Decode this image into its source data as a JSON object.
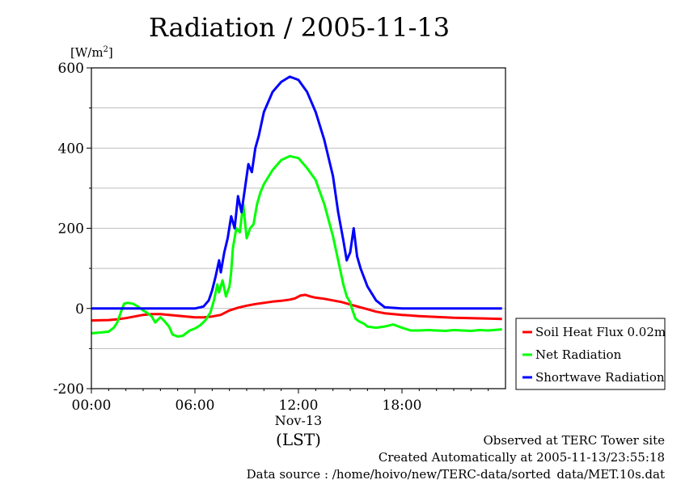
{
  "chart_data": {
    "type": "line",
    "title": "Radiation / 2005-11-13",
    "ylabel_unit": "[W/m",
    "ylabel_sup": "2",
    "ylabel_close": "]",
    "ylim": [
      -200,
      600
    ],
    "yticks": [
      -200,
      0,
      200,
      400,
      600
    ],
    "xlim": [
      0,
      24
    ],
    "xticks": [
      {
        "value": 0,
        "label": "00:00"
      },
      {
        "value": 6,
        "label": "06:00"
      },
      {
        "value": 12,
        "label": "12:00"
      },
      {
        "value": 18,
        "label": "18:00"
      }
    ],
    "date_label": "Nov-13",
    "xlabel": "(LST)",
    "grid": true,
    "legend_position": "right",
    "series": [
      {
        "name": "Soil Heat Flux 0.02m",
        "color": "#ff0000",
        "x": [
          0,
          1,
          1.5,
          2,
          2.5,
          3,
          3.5,
          4,
          4.5,
          5,
          5.5,
          6,
          6.5,
          7,
          7.5,
          8,
          8.5,
          9,
          9.5,
          10,
          10.5,
          11,
          11.5,
          11.8,
          12.1,
          12.4,
          12.7,
          13,
          13.5,
          14,
          14.5,
          15,
          15.5,
          16,
          16.5,
          17,
          18,
          19,
          20,
          21,
          22,
          23,
          23.8
        ],
        "values": [
          -30,
          -29,
          -27,
          -24,
          -20,
          -16,
          -14,
          -14,
          -16,
          -18,
          -20,
          -22,
          -22,
          -20,
          -16,
          -5,
          2,
          7,
          11,
          14,
          17,
          19,
          22,
          25,
          32,
          34,
          30,
          27,
          24,
          20,
          16,
          10,
          4,
          -2,
          -8,
          -12,
          -16,
          -19,
          -21,
          -23,
          -24,
          -25,
          -26
        ]
      },
      {
        "name": "Net Radiation",
        "color": "#00ff00",
        "x": [
          0,
          0.5,
          1,
          1.3,
          1.5,
          1.7,
          1.9,
          2.1,
          2.4,
          2.7,
          3,
          3.2,
          3.5,
          3.7,
          4,
          4.2,
          4.5,
          4.7,
          5,
          5.3,
          5.7,
          6,
          6.3,
          6.6,
          6.9,
          7.1,
          7.3,
          7.4,
          7.6,
          7.8,
          8,
          8.1,
          8.2,
          8.4,
          8.6,
          8.8,
          9,
          9.2,
          9.4,
          9.6,
          9.8,
          10,
          10.5,
          11,
          11.5,
          12,
          12.5,
          13,
          13.5,
          14,
          14.3,
          14.6,
          14.8,
          15,
          15.1,
          15.3,
          15.5,
          15.8,
          16,
          16.5,
          17,
          17.5,
          18,
          18.5,
          19,
          19.5,
          20,
          20.5,
          21,
          21.5,
          22,
          22.5,
          23,
          23.5,
          23.8
        ],
        "values": [
          -62,
          -60,
          -58,
          -48,
          -35,
          -10,
          12,
          14,
          12,
          5,
          -5,
          -10,
          -20,
          -35,
          -22,
          -30,
          -45,
          -65,
          -70,
          -68,
          -55,
          -50,
          -42,
          -30,
          -10,
          20,
          60,
          40,
          70,
          30,
          55,
          90,
          150,
          200,
          190,
          260,
          175,
          200,
          210,
          260,
          290,
          310,
          345,
          370,
          380,
          375,
          350,
          320,
          260,
          180,
          120,
          60,
          30,
          15,
          0,
          -25,
          -32,
          -38,
          -45,
          -48,
          -45,
          -40,
          -48,
          -55,
          -55,
          -54,
          -55,
          -56,
          -54,
          -55,
          -56,
          -54,
          -55,
          -53,
          -52
        ]
      },
      {
        "name": "Shortwave Radiation",
        "color": "#0000ff",
        "x": [
          0,
          1,
          2,
          3,
          4,
          5,
          6,
          6.5,
          6.8,
          7,
          7.2,
          7.4,
          7.5,
          7.7,
          7.9,
          8.1,
          8.3,
          8.5,
          8.7,
          8.9,
          9.1,
          9.3,
          9.5,
          9.7,
          10,
          10.5,
          11,
          11.5,
          12,
          12.5,
          13,
          13.5,
          14,
          14.3,
          14.6,
          14.8,
          15,
          15.2,
          15.4,
          15.6,
          16,
          16.5,
          17,
          18,
          19,
          20,
          21,
          22,
          23,
          23.8
        ],
        "values": [
          0,
          0,
          0,
          0,
          0,
          0,
          0,
          5,
          20,
          45,
          80,
          120,
          90,
          140,
          175,
          230,
          200,
          280,
          240,
          300,
          360,
          340,
          400,
          430,
          490,
          540,
          565,
          578,
          570,
          540,
          490,
          420,
          330,
          240,
          170,
          120,
          140,
          200,
          130,
          100,
          55,
          20,
          3,
          0,
          0,
          0,
          0,
          0,
          0,
          0
        ]
      }
    ]
  },
  "footer": {
    "observed": "Observed at TERC Tower site",
    "created": "Created Automatically at 2005-11-13/23:55:18",
    "source": "Data source : /home/hoivo/new/TERC-data/sorted_data/MET.10s.dat"
  }
}
